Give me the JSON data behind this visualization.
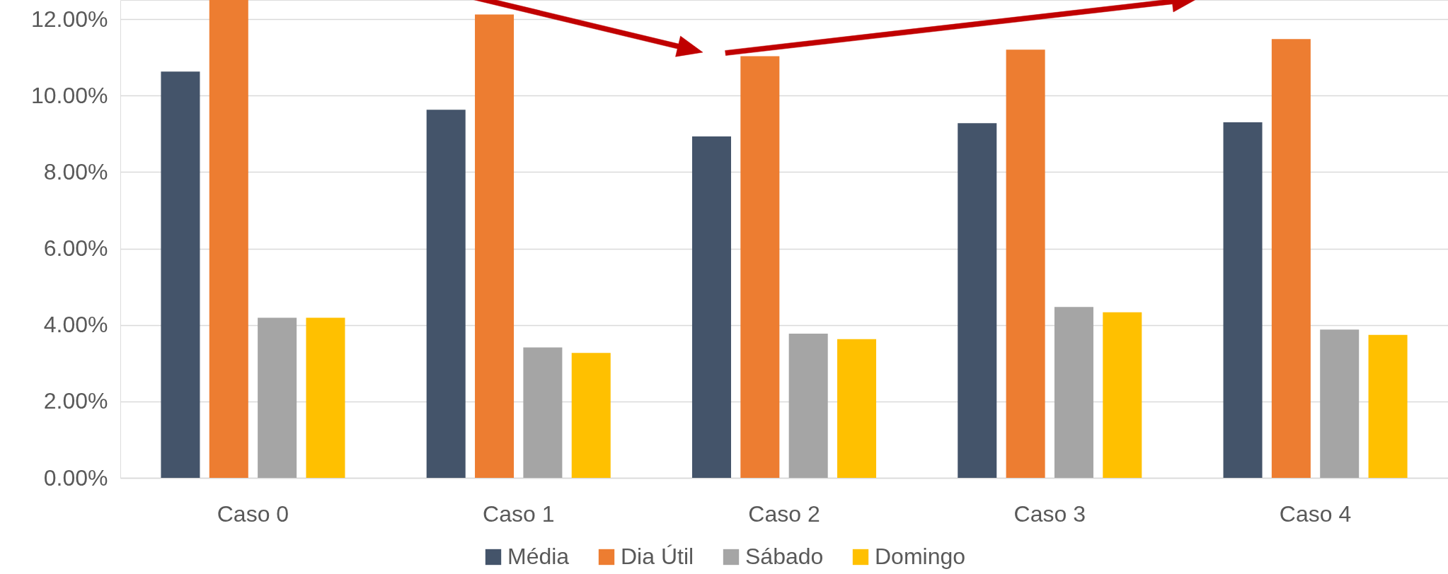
{
  "chart_data": {
    "type": "bar",
    "categories": [
      "Caso 0",
      "Caso 1",
      "Caso 2",
      "Caso 3",
      "Caso 4"
    ],
    "series": [
      {
        "name": "Média",
        "color": "#44546a",
        "values": [
          10.63,
          9.63,
          8.93,
          9.28,
          9.3
        ]
      },
      {
        "name": "Dia Útil",
        "color": "#ed7d31",
        "values": [
          12.5,
          12.12,
          11.03,
          11.2,
          11.48
        ]
      },
      {
        "name": "Sábado",
        "color": "#a5a5a5",
        "values": [
          4.19,
          3.41,
          3.77,
          4.47,
          3.88
        ]
      },
      {
        "name": "Domingo",
        "color": "#ffc000",
        "values": [
          4.19,
          3.27,
          3.63,
          4.33,
          3.74
        ]
      }
    ],
    "ylim": [
      0,
      12.5
    ],
    "yticks": [
      {
        "value": 0,
        "label": "0.00%"
      },
      {
        "value": 2,
        "label": "2.00%"
      },
      {
        "value": 4,
        "label": "4.00%"
      },
      {
        "value": 6,
        "label": "6.00%"
      },
      {
        "value": 8,
        "label": "8.00%"
      },
      {
        "value": 10,
        "label": "10.00%"
      },
      {
        "value": 12,
        "label": "12.00%"
      }
    ],
    "grid": "y",
    "legend": "bottom"
  }
}
